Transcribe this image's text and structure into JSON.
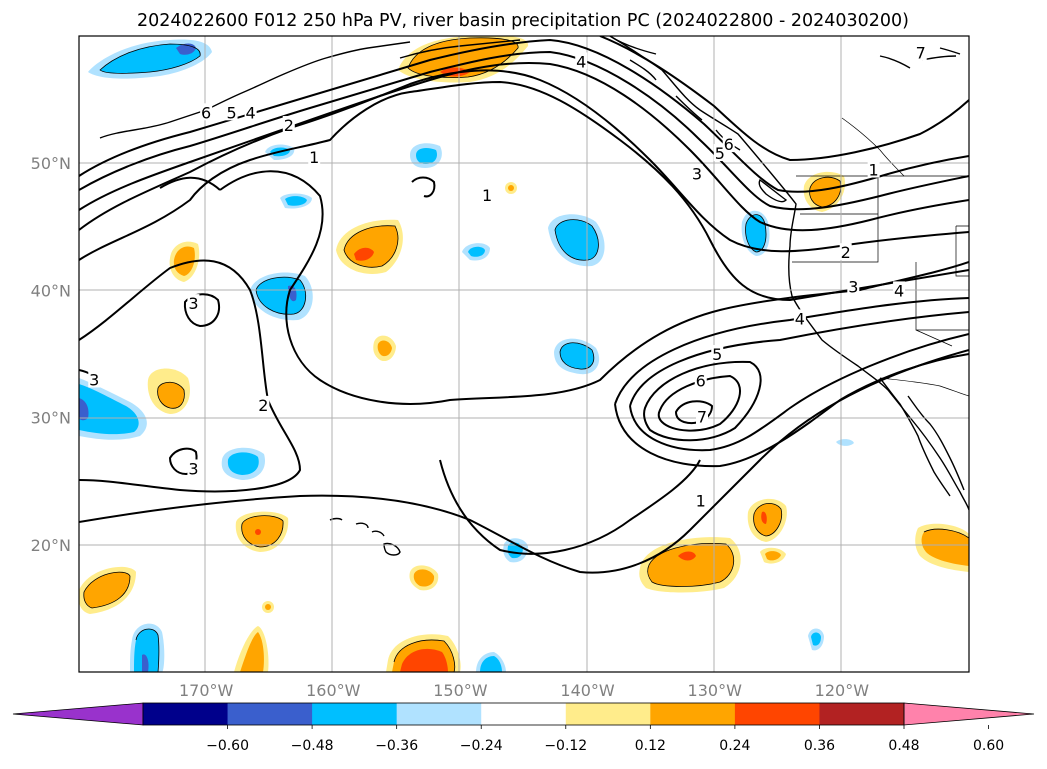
{
  "title": "2024022600 F012 250 hPa PV, river basin precipitation PC (2024022800 - 2024030200)",
  "map": {
    "lat_labels": [
      {
        "lat": 50,
        "text": "50°N"
      },
      {
        "lat": 40,
        "text": "40°N"
      },
      {
        "lat": 30,
        "text": "30°N"
      },
      {
        "lat": 20,
        "text": "20°N"
      }
    ],
    "lon_labels": [
      {
        "lon": -170,
        "text": "170°W"
      },
      {
        "lon": -160,
        "text": "160°W"
      },
      {
        "lon": -150,
        "text": "150°W"
      },
      {
        "lon": -140,
        "text": "140°W"
      },
      {
        "lon": -130,
        "text": "130°W"
      },
      {
        "lon": -120,
        "text": "120°W"
      }
    ],
    "grid": true,
    "label_color": "#808080"
  },
  "pv_contour_labels": [
    {
      "text": "6",
      "lon": -170.0,
      "lat": 54.0
    },
    {
      "text": "5",
      "lon": -168.0,
      "lat": 54.0
    },
    {
      "text": "4",
      "lon": -166.5,
      "lat": 54.0
    },
    {
      "text": "2",
      "lon": -163.5,
      "lat": 53.0
    },
    {
      "text": "1",
      "lon": -161.5,
      "lat": 50.5
    },
    {
      "text": "1",
      "lon": -147.9,
      "lat": 47.5
    },
    {
      "text": "4",
      "lon": -140.5,
      "lat": 58.0
    },
    {
      "text": "5",
      "lon": -129.6,
      "lat": 50.8
    },
    {
      "text": "6",
      "lon": -128.9,
      "lat": 51.5
    },
    {
      "text": "3",
      "lon": -131.4,
      "lat": 49.2
    },
    {
      "text": "1",
      "lon": -117.5,
      "lat": 49.5
    },
    {
      "text": "2",
      "lon": -119.7,
      "lat": 43.0
    },
    {
      "text": "3",
      "lon": -119.1,
      "lat": 40.3
    },
    {
      "text": "4",
      "lon": -115.5,
      "lat": 40.0
    },
    {
      "text": "4",
      "lon": -123.3,
      "lat": 37.8
    },
    {
      "text": "5",
      "lon": -129.8,
      "lat": 35.0
    },
    {
      "text": "6",
      "lon": -131.1,
      "lat": 32.9
    },
    {
      "text": "7",
      "lon": -131.0,
      "lat": 30.1
    },
    {
      "text": "1",
      "lon": -131.1,
      "lat": 23.5
    },
    {
      "text": "3",
      "lon": -171.0,
      "lat": 39.0
    },
    {
      "text": "2",
      "lon": -165.5,
      "lat": 31.0
    },
    {
      "text": "3",
      "lon": -178.8,
      "lat": 33.0
    },
    {
      "text": "3",
      "lon": -171.0,
      "lat": 26.0
    },
    {
      "text": "7",
      "lon": -113.8,
      "lat": 58.7
    }
  ],
  "colorbar": {
    "tick_labels": [
      "−0.60",
      "−0.48",
      "−0.36",
      "−0.24",
      "−0.12",
      "0.12",
      "0.24",
      "0.36",
      "0.48",
      "0.60"
    ],
    "colors": [
      "#9932cc",
      "#00008b",
      "#3a5fcd",
      "#00bfff",
      "#b0e2ff",
      "#ffffff",
      "#ffec8b",
      "#ffa500",
      "#ff4500",
      "#b22222",
      "#ff82ab"
    ],
    "extend": "both"
  }
}
